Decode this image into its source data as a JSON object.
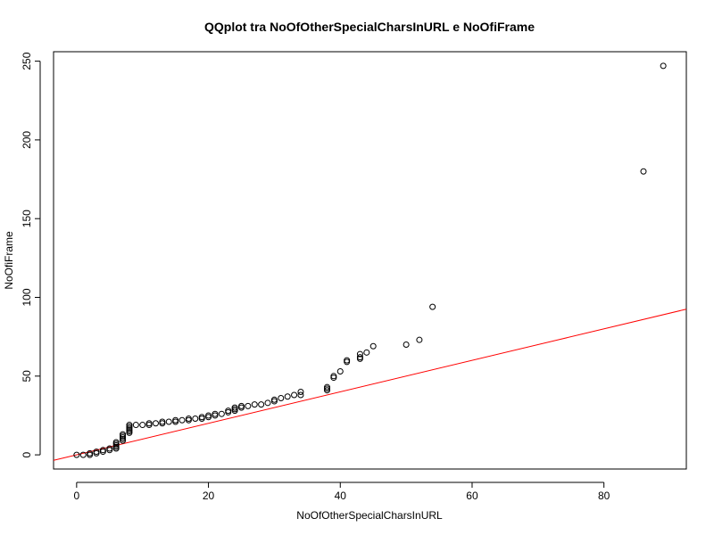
{
  "chart_data": {
    "type": "scatter",
    "title": "QQplot tra NoOfOtherSpecialCharsInURL e NoOfiFrame",
    "xlabel": "NoOfOtherSpecialCharsInURL",
    "ylabel": "NoOfiFrame",
    "xlim": [
      -3.5,
      92.5
    ],
    "ylim": [
      -9,
      256
    ],
    "xticks": [
      "0",
      "20",
      "40",
      "60",
      "80"
    ],
    "yticks": [
      "0",
      "50",
      "100",
      "150",
      "200",
      "250"
    ],
    "grid": false,
    "points": [
      [
        0,
        0
      ],
      [
        1,
        0
      ],
      [
        2,
        0
      ],
      [
        2,
        1
      ],
      [
        3,
        1
      ],
      [
        3,
        2
      ],
      [
        4,
        2
      ],
      [
        4,
        3
      ],
      [
        5,
        3
      ],
      [
        5,
        4
      ],
      [
        6,
        4
      ],
      [
        6,
        5
      ],
      [
        6,
        6
      ],
      [
        6,
        7
      ],
      [
        6,
        8
      ],
      [
        7,
        9
      ],
      [
        7,
        10
      ],
      [
        7,
        11
      ],
      [
        7,
        12
      ],
      [
        7,
        13
      ],
      [
        8,
        14
      ],
      [
        8,
        15
      ],
      [
        8,
        16
      ],
      [
        8,
        17
      ],
      [
        8,
        18
      ],
      [
        8,
        19
      ],
      [
        9,
        19
      ],
      [
        10,
        19
      ],
      [
        11,
        19
      ],
      [
        11,
        20
      ],
      [
        12,
        20
      ],
      [
        13,
        20
      ],
      [
        13,
        21
      ],
      [
        14,
        21
      ],
      [
        15,
        21
      ],
      [
        15,
        22
      ],
      [
        16,
        22
      ],
      [
        17,
        22
      ],
      [
        17,
        23
      ],
      [
        18,
        23
      ],
      [
        19,
        23
      ],
      [
        19,
        24
      ],
      [
        20,
        24
      ],
      [
        20,
        25
      ],
      [
        21,
        25
      ],
      [
        21,
        26
      ],
      [
        22,
        26
      ],
      [
        23,
        27
      ],
      [
        23,
        28
      ],
      [
        24,
        28
      ],
      [
        24,
        29
      ],
      [
        24,
        30
      ],
      [
        25,
        30
      ],
      [
        25,
        31
      ],
      [
        26,
        31
      ],
      [
        27,
        32
      ],
      [
        28,
        32
      ],
      [
        29,
        33
      ],
      [
        30,
        34
      ],
      [
        30,
        35
      ],
      [
        31,
        36
      ],
      [
        32,
        37
      ],
      [
        33,
        38
      ],
      [
        34,
        38
      ],
      [
        34,
        40
      ],
      [
        38,
        41
      ],
      [
        38,
        42
      ],
      [
        38,
        43
      ],
      [
        39,
        49
      ],
      [
        39,
        50
      ],
      [
        40,
        53
      ],
      [
        41,
        59
      ],
      [
        41,
        60
      ],
      [
        43,
        61
      ],
      [
        43,
        62
      ],
      [
        43,
        64
      ],
      [
        44,
        65
      ],
      [
        45,
        69
      ],
      [
        50,
        70
      ],
      [
        52,
        73
      ],
      [
        54,
        94
      ],
      [
        86,
        180
      ],
      [
        89,
        247
      ]
    ],
    "reference_line": {
      "intercept": 0,
      "slope": 1,
      "color": "#ff0000"
    },
    "point_color": "#000000"
  }
}
